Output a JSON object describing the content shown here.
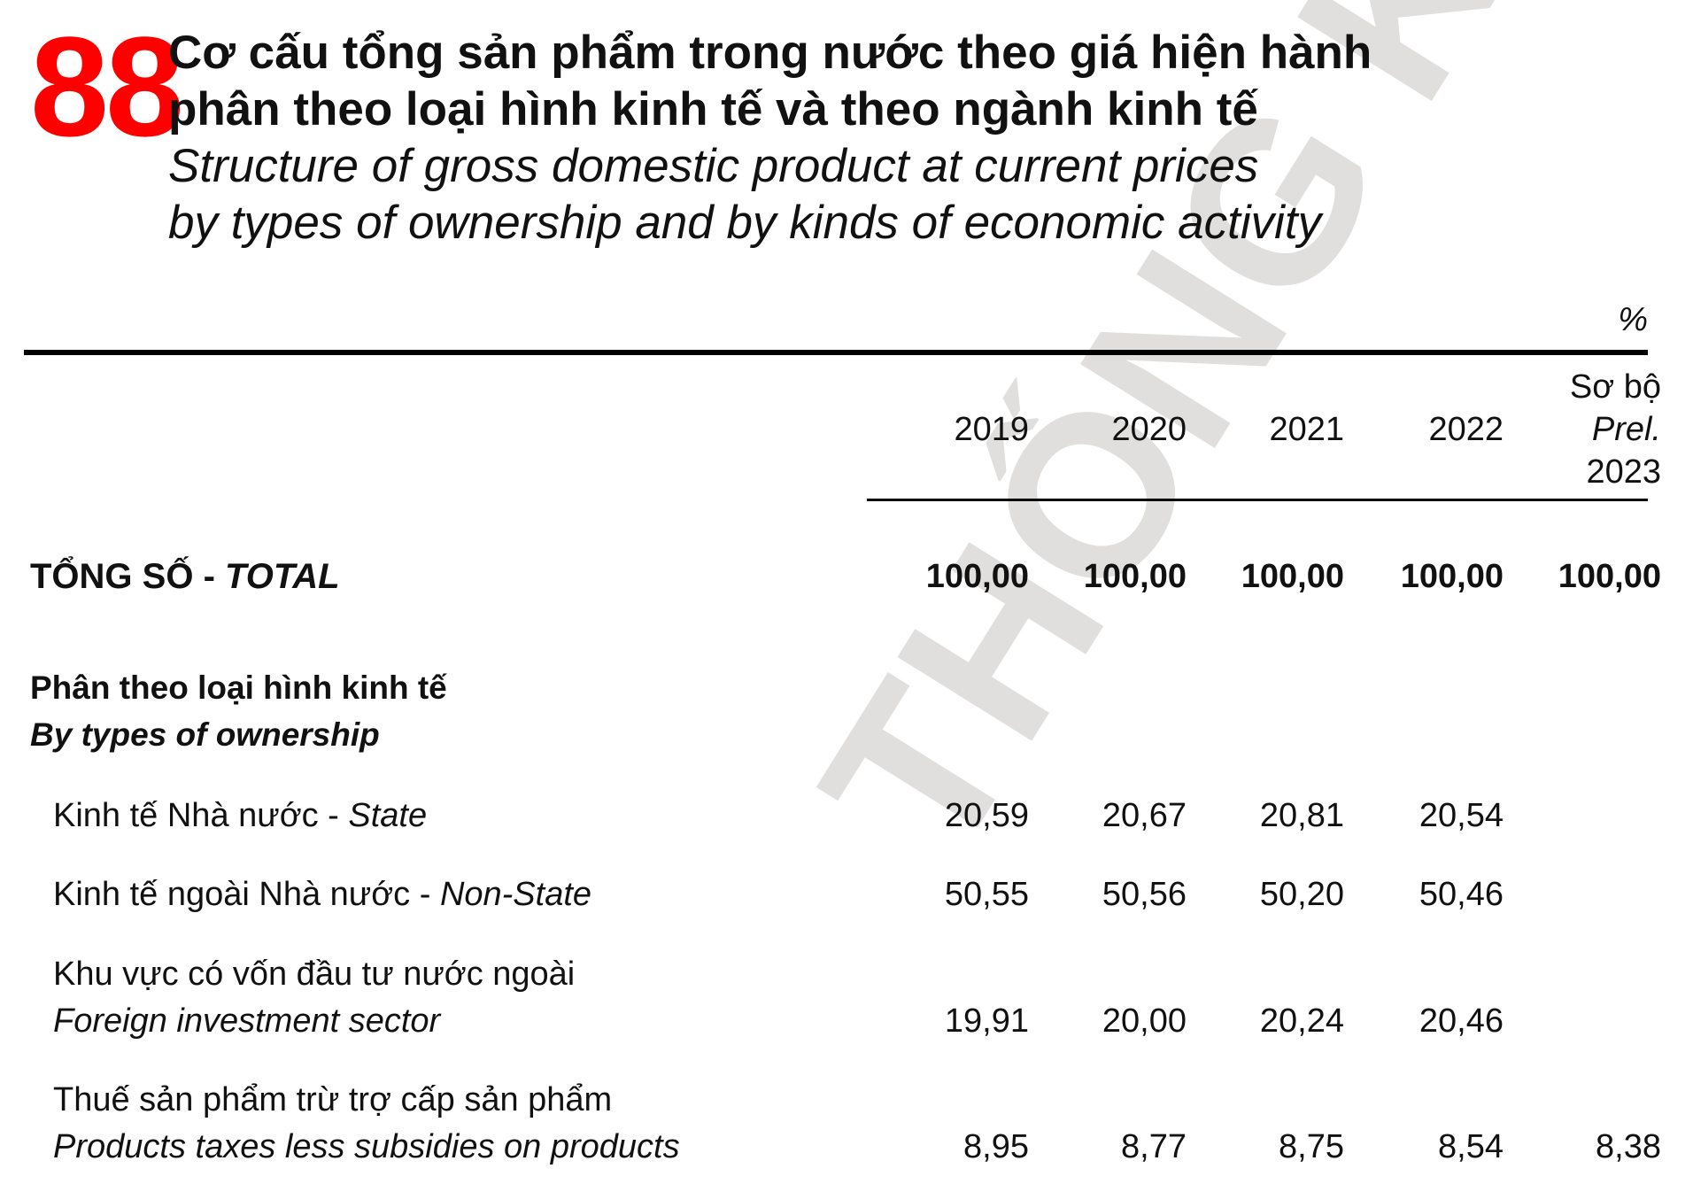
{
  "table_number": "88",
  "title": {
    "vi_line1": "Cơ cấu tổng sản phẩm trong nước theo giá hiện hành",
    "vi_line2": "phân theo loại hình kinh tế và theo ngành kinh tế",
    "en_line1": "Structure of gross domestic product at current prices",
    "en_line2": "by types of ownership and by kinds of economic activity"
  },
  "unit": "%",
  "columns": {
    "c2019": "2019",
    "c2020": "2020",
    "c2021": "2021",
    "c2022": "2022",
    "c2023_vi": "Sơ bộ",
    "c2023_en": "Prel.",
    "c2023_year": "2023"
  },
  "watermark": "THỐNG KÊ",
  "rows": {
    "total": {
      "label_vi": "TỔNG SỐ - ",
      "label_en": "TOTAL",
      "values": [
        "100,00",
        "100,00",
        "100,00",
        "100,00",
        "100,00"
      ]
    },
    "section": {
      "label_vi": "Phân theo loại hình kinh tế",
      "label_en": "By types of ownership"
    },
    "state": {
      "label_vi": "Kinh tế Nhà nước - ",
      "label_en": "State",
      "values": [
        "20,59",
        "20,67",
        "20,81",
        "20,54",
        ""
      ]
    },
    "non_state": {
      "label_vi": "Kinh tế ngoài Nhà nước - ",
      "label_en": "Non-State",
      "values": [
        "50,55",
        "50,56",
        "50,20",
        "50,46",
        ""
      ]
    },
    "foreign": {
      "label_vi": "Khu vực có vốn đầu tư nước ngoài",
      "label_en": "Foreign investment sector",
      "values": [
        "19,91",
        "20,00",
        "20,24",
        "20,46",
        ""
      ]
    },
    "taxes": {
      "label_vi": "Thuế sản phẩm trừ trợ cấp sản phẩm",
      "label_en": "Products taxes less subsidies on products",
      "values": [
        "8,95",
        "8,77",
        "8,75",
        "8,54",
        "8,38"
      ]
    }
  }
}
